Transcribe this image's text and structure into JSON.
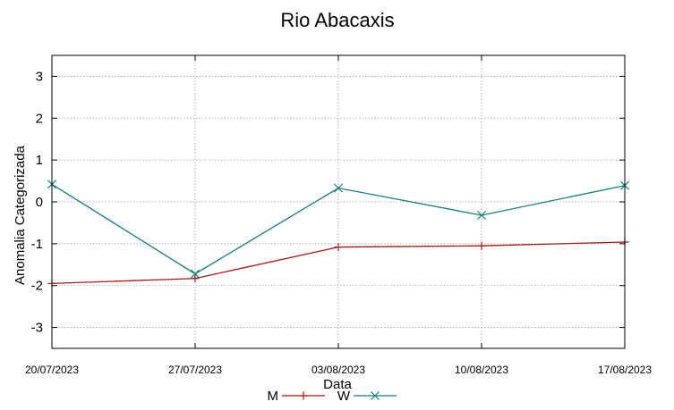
{
  "chart_data": {
    "type": "line",
    "title": "Rio Abacaxis",
    "xlabel": "Data",
    "ylabel": "Anomalia Categorizada",
    "categories": [
      "20/07/2023",
      "27/07/2023",
      "03/08/2023",
      "10/08/2023",
      "17/08/2023"
    ],
    "ylim": [
      -3.5,
      3.5
    ],
    "yticks": [
      -3,
      -2,
      -1,
      0,
      1,
      2,
      3
    ],
    "grid": true,
    "legend_position": "bottom",
    "series": [
      {
        "name": "M",
        "color": "#a01b1b",
        "marker": "plus",
        "values": [
          -1.95,
          -1.83,
          -1.08,
          -1.05,
          -0.96
        ]
      },
      {
        "name": "W",
        "color": "#1a7e7e",
        "marker": "cross",
        "values": [
          0.42,
          -1.72,
          0.33,
          -0.32,
          0.39
        ]
      }
    ]
  }
}
